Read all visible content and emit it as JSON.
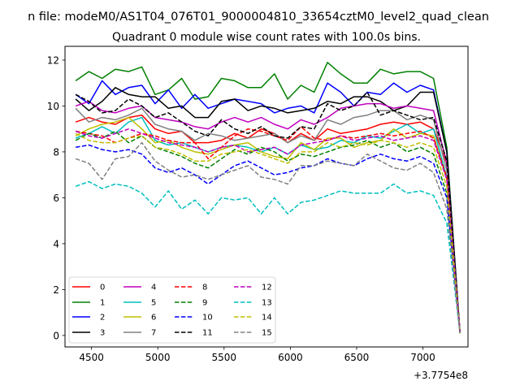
{
  "chart_data": {
    "type": "line",
    "suptitle": "n file: modeM0/AS1T04_076T01_9000004810_33654cztM0_level2_quad_clean",
    "title": "Quadrant 0 module wise count rates with 100.0s bins.",
    "xlabel": "",
    "ylabel": "",
    "x_offset_label": "+3.7754e8",
    "xlim": [
      4300,
      7340
    ],
    "ylim": [
      -0.5,
      12.6
    ],
    "xticks": [
      4500,
      5000,
      5500,
      6000,
      6500,
      7000
    ],
    "xtick_labels": [
      "4500",
      "5000",
      "5500",
      "6000",
      "6500",
      "7000"
    ],
    "yticks": [
      0,
      2,
      4,
      6,
      8,
      10,
      12
    ],
    "ytick_labels": [
      "0",
      "2",
      "4",
      "6",
      "8",
      "10",
      "12"
    ],
    "legend_position": "lower-left",
    "x": [
      4380,
      4480,
      4580,
      4680,
      4780,
      4880,
      4980,
      5080,
      5180,
      5280,
      5380,
      5480,
      5580,
      5680,
      5780,
      5880,
      5980,
      6080,
      6180,
      6280,
      6380,
      6480,
      6580,
      6680,
      6780,
      6880,
      6980,
      7080,
      7180,
      7280
    ],
    "series": [
      {
        "name": "0",
        "color": "#ff0000",
        "dash": "solid",
        "values": [
          9.3,
          9.5,
          9.3,
          9.2,
          9.5,
          9.6,
          9.0,
          8.8,
          8.9,
          8.4,
          8.4,
          8.5,
          8.8,
          8.6,
          9.0,
          8.8,
          8.4,
          8.8,
          8.5,
          9.0,
          8.8,
          8.9,
          9.0,
          9.2,
          9.3,
          9.2,
          9.3,
          9.0,
          7.5,
          0.1
        ]
      },
      {
        "name": "1",
        "color": "#008000",
        "dash": "solid",
        "values": [
          11.1,
          11.5,
          11.2,
          11.6,
          11.5,
          11.7,
          10.5,
          10.7,
          11.2,
          10.3,
          10.4,
          11.2,
          11.1,
          10.8,
          10.8,
          11.4,
          10.3,
          10.9,
          10.6,
          11.9,
          11.4,
          11.0,
          11.0,
          11.6,
          11.4,
          11.5,
          11.5,
          11.2,
          8.2,
          0.1
        ]
      },
      {
        "name": "2",
        "color": "#0000ff",
        "dash": "solid",
        "values": [
          10.5,
          10.1,
          11.1,
          10.5,
          10.8,
          10.9,
          10.1,
          10.7,
          9.9,
          10.5,
          9.9,
          10.1,
          10.3,
          10.2,
          10.1,
          9.7,
          9.9,
          10.0,
          9.7,
          11.0,
          10.6,
          10.0,
          10.6,
          10.5,
          11.0,
          10.6,
          10.9,
          10.7,
          8.0,
          0.1
        ]
      },
      {
        "name": "3",
        "color": "#000000",
        "dash": "solid",
        "values": [
          10.3,
          9.8,
          10.2,
          10.8,
          10.5,
          10.4,
          10.4,
          9.9,
          10.0,
          9.5,
          9.5,
          10.2,
          10.3,
          9.8,
          10.0,
          9.9,
          9.7,
          9.8,
          9.9,
          10.2,
          10.1,
          10.4,
          10.4,
          10.2,
          9.8,
          10.0,
          10.6,
          10.6,
          8.0,
          0.1
        ]
      },
      {
        "name": "4",
        "color": "#bf00bf",
        "dash": "solid",
        "values": [
          10.0,
          10.2,
          9.8,
          9.7,
          9.9,
          10.0,
          9.5,
          9.4,
          9.3,
          9.1,
          9.0,
          9.3,
          9.5,
          9.3,
          9.5,
          9.2,
          9.0,
          9.4,
          9.2,
          9.5,
          9.9,
          10.0,
          10.1,
          10.1,
          9.9,
          10.0,
          9.9,
          9.8,
          7.5,
          0.1
        ]
      },
      {
        "name": "5",
        "color": "#00bfbf",
        "dash": "solid",
        "values": [
          8.6,
          8.8,
          9.1,
          8.8,
          9.3,
          9.5,
          8.5,
          8.3,
          8.4,
          8.2,
          8.0,
          8.2,
          8.3,
          8.2,
          8.0,
          8.2,
          7.9,
          8.3,
          8.1,
          8.2,
          8.5,
          8.4,
          8.7,
          8.6,
          8.9,
          9.2,
          8.8,
          9.0,
          6.9,
          0.1
        ]
      },
      {
        "name": "6",
        "color": "#bfbf00",
        "dash": "solid",
        "values": [
          8.7,
          9.0,
          9.2,
          9.3,
          9.5,
          9.0,
          8.4,
          8.5,
          8.2,
          8.0,
          7.9,
          8.1,
          8.3,
          8.4,
          8.0,
          7.8,
          7.7,
          8.4,
          8.1,
          8.6,
          8.6,
          8.2,
          8.4,
          8.5,
          9.0,
          8.6,
          8.8,
          8.7,
          6.8,
          0.1
        ]
      },
      {
        "name": "7",
        "color": "#808080",
        "dash": "solid",
        "values": [
          9.9,
          9.3,
          9.5,
          9.4,
          9.6,
          9.9,
          9.2,
          9.0,
          8.9,
          8.5,
          8.8,
          8.7,
          8.5,
          8.6,
          8.7,
          8.8,
          8.4,
          8.7,
          8.5,
          9.4,
          9.2,
          9.5,
          9.6,
          9.8,
          9.8,
          9.4,
          9.6,
          9.4,
          7.2,
          0.1
        ]
      },
      {
        "name": "8",
        "color": "#ff0000",
        "dash": "dashed",
        "values": [
          8.9,
          8.8,
          8.7,
          8.4,
          8.6,
          8.8,
          8.7,
          8.5,
          8.4,
          8.4,
          7.7,
          8.2,
          8.7,
          9.0,
          8.9,
          8.7,
          8.5,
          9.1,
          8.6,
          8.5,
          8.7,
          8.6,
          8.7,
          8.8,
          8.7,
          8.8,
          8.9,
          8.6,
          6.9,
          0.1
        ]
      },
      {
        "name": "9",
        "color": "#008000",
        "dash": "dashed",
        "values": [
          8.5,
          8.8,
          8.6,
          8.9,
          8.4,
          8.7,
          8.2,
          8.0,
          7.8,
          7.5,
          7.3,
          7.7,
          8.1,
          7.9,
          8.2,
          8.0,
          7.6,
          7.9,
          7.8,
          8.0,
          8.2,
          8.3,
          8.5,
          8.2,
          8.4,
          8.0,
          8.2,
          7.9,
          6.2,
          0.1
        ]
      },
      {
        "name": "10",
        "color": "#0000ff",
        "dash": "dashed",
        "values": [
          8.2,
          8.3,
          8.1,
          8.0,
          8.1,
          7.9,
          7.3,
          7.1,
          7.3,
          7.0,
          6.6,
          7.0,
          7.4,
          7.6,
          7.3,
          7.0,
          7.1,
          7.3,
          7.4,
          7.7,
          7.5,
          7.4,
          7.7,
          7.9,
          7.7,
          7.6,
          7.8,
          7.5,
          6.0,
          0.1
        ]
      },
      {
        "name": "11",
        "color": "#000000",
        "dash": "dashed",
        "values": [
          10.5,
          10.2,
          9.7,
          9.8,
          10.3,
          10.0,
          9.5,
          9.7,
          9.3,
          8.9,
          8.7,
          9.4,
          9.0,
          8.8,
          9.1,
          8.7,
          8.6,
          9.1,
          9.0,
          10.1,
          9.8,
          10.0,
          10.6,
          9.6,
          9.8,
          9.6,
          9.4,
          9.5,
          7.6,
          0.1
        ]
      },
      {
        "name": "12",
        "color": "#bf00bf",
        "dash": "dashed",
        "values": [
          8.9,
          8.7,
          8.6,
          8.8,
          9.0,
          8.8,
          8.6,
          8.4,
          8.3,
          8.2,
          8.0,
          8.2,
          8.3,
          8.0,
          8.1,
          8.2,
          7.9,
          8.3,
          8.4,
          8.5,
          8.7,
          8.5,
          8.6,
          8.7,
          8.5,
          8.6,
          8.7,
          8.5,
          6.8,
          0.1
        ]
      },
      {
        "name": "13",
        "color": "#00bfbf",
        "dash": "dashed",
        "values": [
          6.5,
          6.7,
          6.4,
          6.6,
          6.5,
          6.2,
          5.6,
          6.3,
          5.5,
          5.9,
          5.3,
          6.0,
          5.9,
          6.0,
          5.3,
          6.0,
          5.3,
          5.8,
          5.9,
          6.1,
          6.3,
          6.2,
          6.2,
          6.2,
          6.6,
          6.2,
          6.3,
          6.1,
          4.9,
          0.1
        ]
      },
      {
        "name": "14",
        "color": "#bfbf00",
        "dash": "dashed",
        "values": [
          8.8,
          8.5,
          8.4,
          8.4,
          8.6,
          8.7,
          8.2,
          8.1,
          7.9,
          7.6,
          7.6,
          7.9,
          8.0,
          8.1,
          7.9,
          7.7,
          7.5,
          8.0,
          8.0,
          8.4,
          8.2,
          8.4,
          8.3,
          8.5,
          8.4,
          8.2,
          8.4,
          8.2,
          6.5,
          0.1
        ]
      },
      {
        "name": "15",
        "color": "#808080",
        "dash": "dashed",
        "values": [
          7.7,
          7.5,
          6.8,
          7.7,
          7.8,
          8.4,
          7.6,
          7.2,
          6.9,
          7.0,
          6.8,
          7.0,
          7.2,
          7.4,
          6.9,
          6.8,
          6.6,
          7.4,
          7.4,
          7.6,
          7.5,
          7.4,
          7.9,
          7.6,
          7.3,
          7.2,
          7.5,
          7.1,
          5.5,
          0.1
        ]
      }
    ]
  }
}
